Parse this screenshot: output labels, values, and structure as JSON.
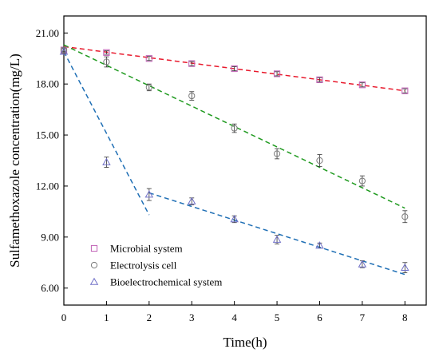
{
  "chart_data": {
    "type": "scatter",
    "xlabel": "Time(h)",
    "ylabel": "Sulfamethoxazole concentration(mg/L)",
    "xlim": [
      0,
      8.5
    ],
    "ylim": [
      5,
      22
    ],
    "xticks": [
      0,
      1,
      2,
      3,
      4,
      5,
      6,
      7,
      8
    ],
    "xtick_labels": [
      "0",
      "1",
      "2",
      "3",
      "4",
      "5",
      "6",
      "7",
      "8"
    ],
    "yticks": [
      6,
      9,
      12,
      15,
      18,
      21
    ],
    "ytick_labels": [
      "6.00",
      "9.00",
      "12.00",
      "15.00",
      "18.00",
      "21.00"
    ],
    "grid": false,
    "legend_position": "bottom-left",
    "series": [
      {
        "name": "Microbial system",
        "marker": "square",
        "color": "#c05fb5",
        "line_color": "#e8192c",
        "x": [
          0,
          1,
          2,
          3,
          4,
          5,
          6,
          7,
          8
        ],
        "y": [
          20.0,
          19.85,
          19.5,
          19.2,
          18.9,
          18.6,
          18.25,
          17.95,
          17.6
        ],
        "err": [
          0.1,
          0.1,
          0.12,
          0.12,
          0.12,
          0.12,
          0.12,
          0.12,
          0.12
        ],
        "fit": [
          [
            0,
            20.2
          ],
          [
            8,
            17.6
          ]
        ]
      },
      {
        "name": "Electrolysis cell",
        "marker": "circle",
        "color": "#7a7a7a",
        "line_color": "#1f9a1f",
        "x": [
          0,
          1,
          2,
          3,
          4,
          5,
          6,
          7,
          8
        ],
        "y": [
          20.0,
          19.3,
          17.8,
          17.3,
          15.4,
          13.9,
          13.5,
          12.3,
          10.2
        ],
        "err": [
          0.15,
          0.3,
          0.2,
          0.25,
          0.25,
          0.3,
          0.35,
          0.3,
          0.35
        ],
        "fit": [
          [
            0,
            20.3
          ],
          [
            8,
            10.7
          ]
        ]
      },
      {
        "name": "Bioelectrochemical system",
        "marker": "triangle",
        "color": "#7070c8",
        "line_color": "#1f6fb5",
        "x": [
          0,
          1,
          2,
          3,
          4,
          5,
          6,
          7,
          8
        ],
        "y": [
          19.9,
          13.4,
          11.5,
          11.1,
          10.05,
          8.85,
          8.5,
          7.4,
          7.2
        ],
        "err": [
          0.1,
          0.3,
          0.35,
          0.2,
          0.2,
          0.25,
          0.15,
          0.2,
          0.3
        ],
        "fit": [
          [
            [
              0,
              19.9
            ],
            [
              2,
              10.3
            ]
          ],
          [
            [
              2,
              11.6
            ],
            [
              8,
              6.8
            ]
          ]
        ]
      }
    ]
  }
}
